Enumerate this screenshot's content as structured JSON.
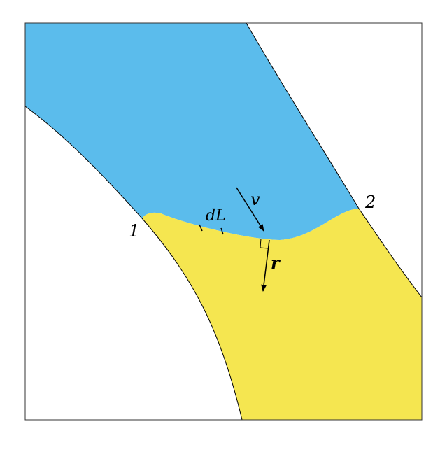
{
  "diagram": {
    "labels": {
      "point1": "1",
      "point2": "2",
      "segment": "dL",
      "velocity": "v",
      "radius": "r"
    },
    "colors": {
      "upper_region": "#5bbcec",
      "lower_region": "#f5e650",
      "background": "#ffffff",
      "stroke": "#000000"
    }
  }
}
